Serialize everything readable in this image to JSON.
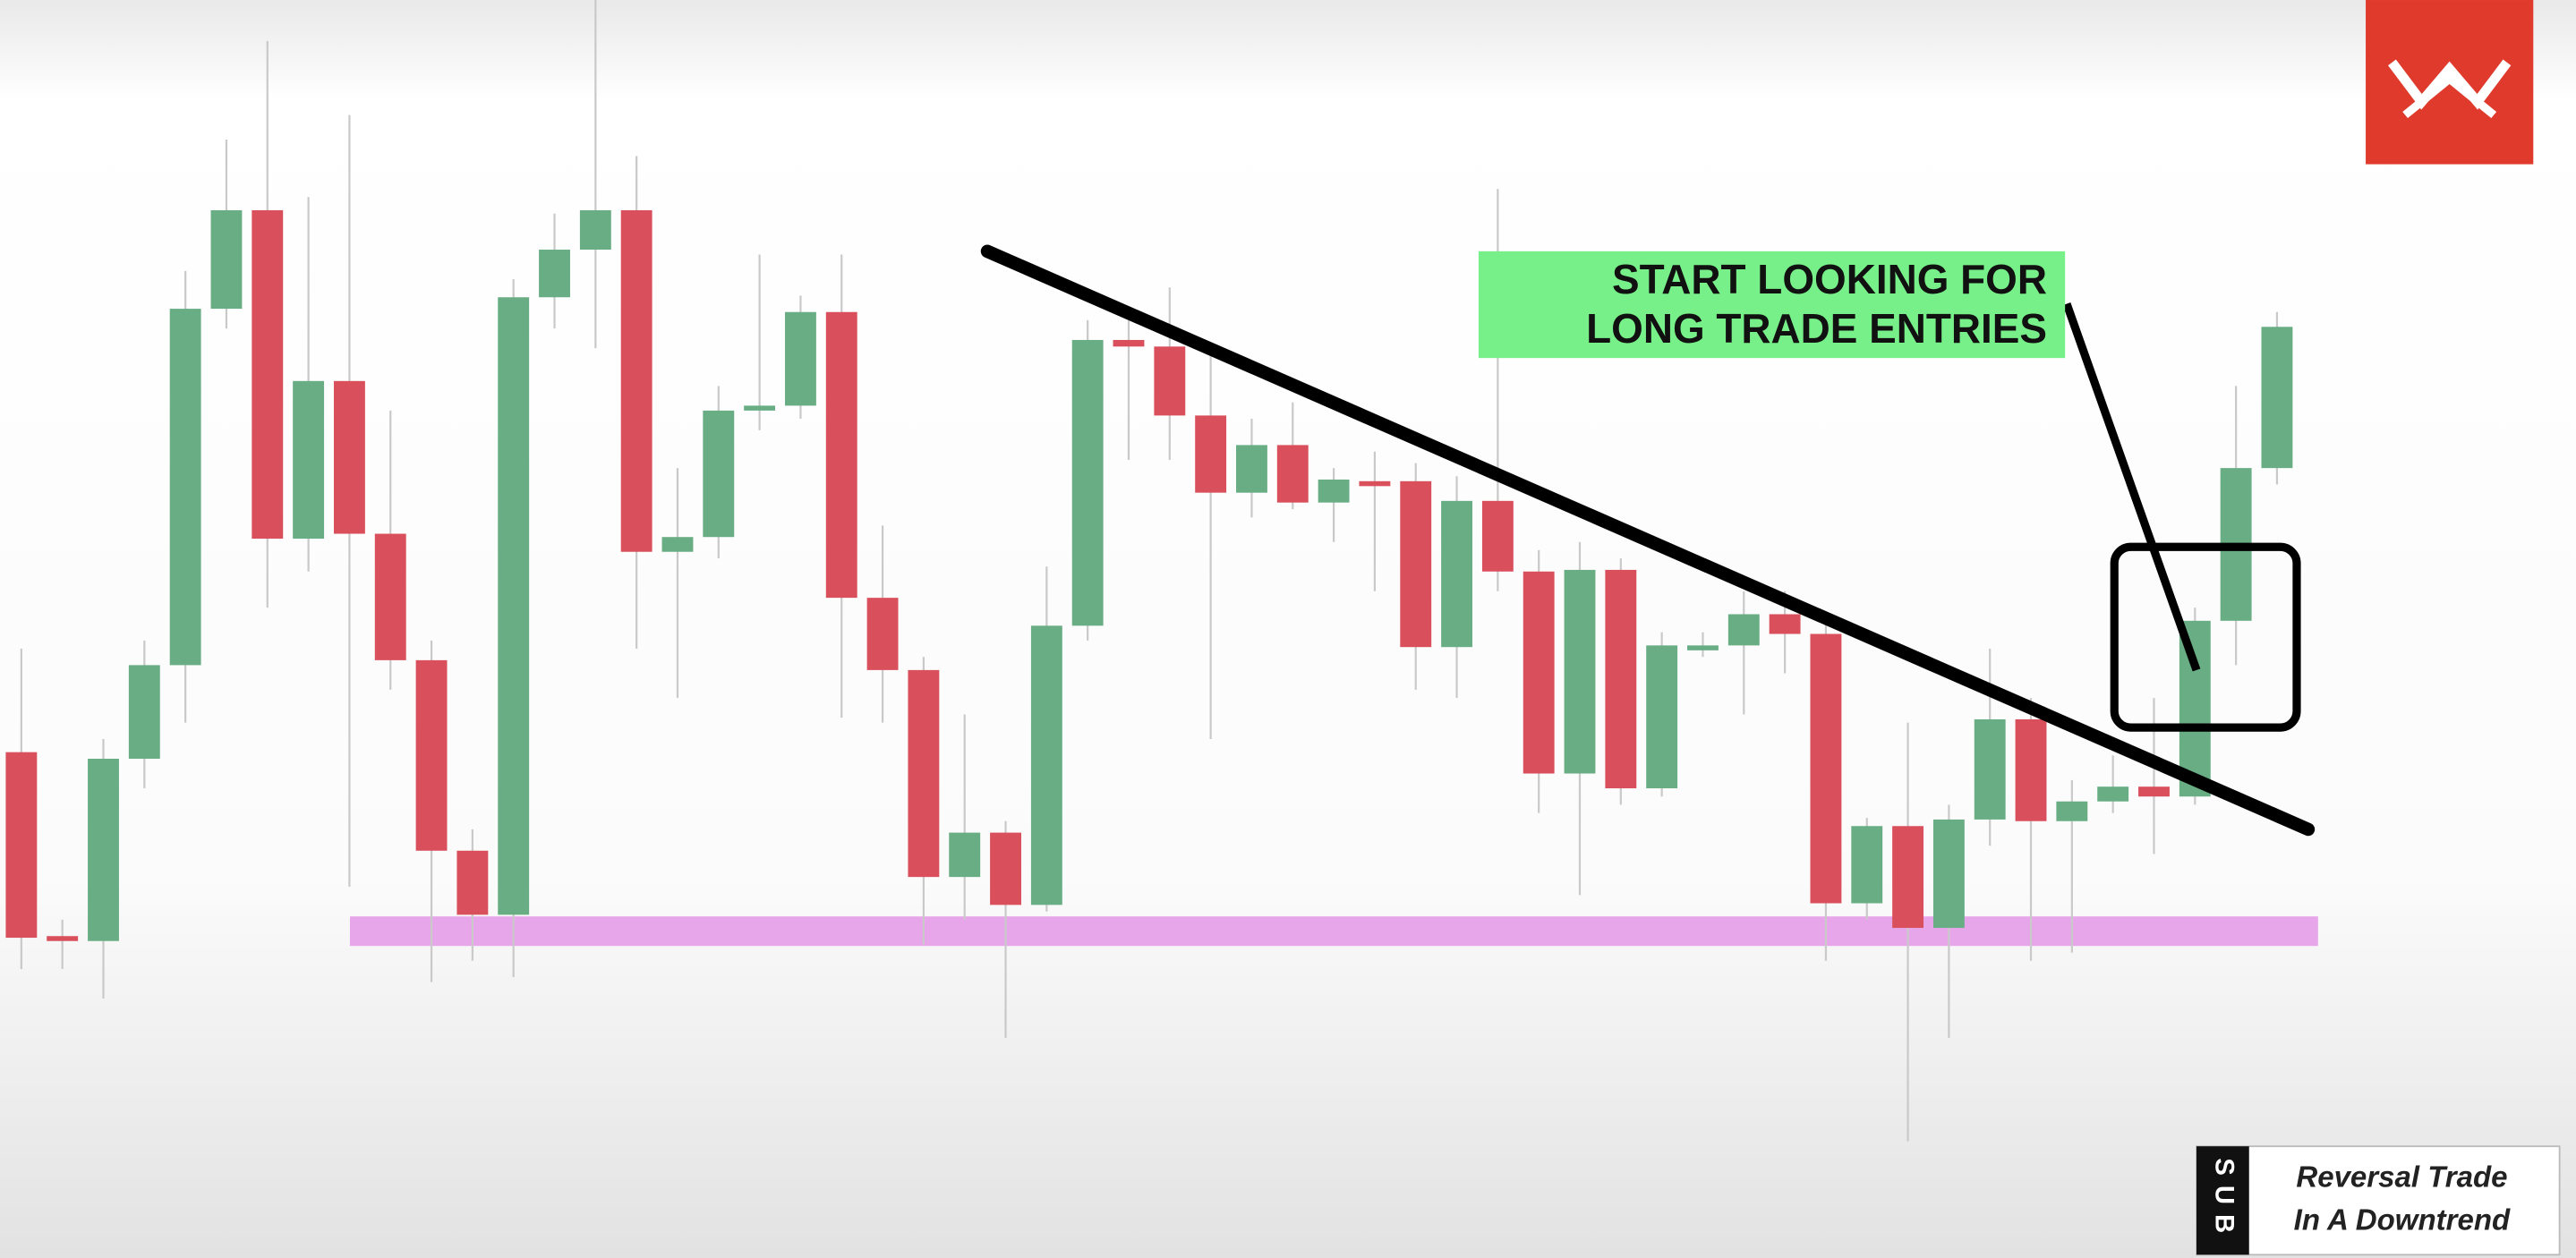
{
  "chart_data": {
    "type": "candlestick",
    "ylim": [
      0,
      766
    ],
    "colors": {
      "up": "#68ad84",
      "down": "#d9505c",
      "wick": "#c9c9c9"
    },
    "open": [
      308,
      196,
      193,
      304,
      361,
      578,
      638,
      438,
      534,
      441,
      364,
      248,
      209,
      585,
      614,
      638,
      430,
      439,
      516,
      519,
      576,
      402,
      358,
      232,
      259,
      215,
      385,
      559,
      555,
      513,
      466,
      495,
      460,
      473,
      473,
      372,
      461,
      418,
      295,
      419,
      286,
      371,
      373,
      392,
      380,
      216,
      263,
      201,
      267,
      328,
      266,
      278,
      287,
      281,
      388,
      481
    ],
    "high": [
      371,
      206,
      316,
      376,
      601,
      681,
      741,
      646,
      696,
      516,
      376,
      261,
      596,
      636,
      766,
      671,
      481,
      531,
      611,
      586,
      611,
      446,
      366,
      331,
      266,
      421,
      571,
      571,
      591,
      556,
      511,
      521,
      481,
      491,
      484,
      476,
      651,
      431,
      436,
      426,
      381,
      381,
      406,
      406,
      386,
      268,
      326,
      276,
      371,
      341,
      291,
      306,
      341,
      396,
      531,
      576
    ],
    "low": [
      176,
      176,
      158,
      286,
      326,
      566,
      396,
      418,
      226,
      346,
      168,
      181,
      171,
      566,
      554,
      371,
      341,
      426,
      504,
      511,
      329,
      326,
      191,
      206,
      134,
      211,
      376,
      486,
      486,
      316,
      451,
      456,
      436,
      406,
      346,
      341,
      406,
      271,
      221,
      276,
      281,
      366,
      331,
      356,
      181,
      206,
      71,
      134,
      251,
      181,
      186,
      271,
      246,
      276,
      361,
      471
    ],
    "close": [
      195,
      194,
      304,
      361,
      578,
      638,
      438,
      534,
      441,
      364,
      248,
      209,
      585,
      614,
      638,
      430,
      439,
      516,
      519,
      576,
      402,
      358,
      232,
      259,
      215,
      385,
      559,
      555,
      513,
      466,
      495,
      460,
      474,
      472,
      372,
      461,
      418,
      295,
      419,
      286,
      373,
      373,
      392,
      380,
      216,
      263,
      201,
      267,
      328,
      266,
      278,
      287,
      281,
      388,
      481,
      567
    ],
    "annotation": [
      "START LOOKING FOR",
      "LONG TRADE ENTRIES"
    ],
    "badge": {
      "logo": "SUB",
      "title": [
        "Reversal Trade",
        "In A Downtrend"
      ]
    }
  }
}
